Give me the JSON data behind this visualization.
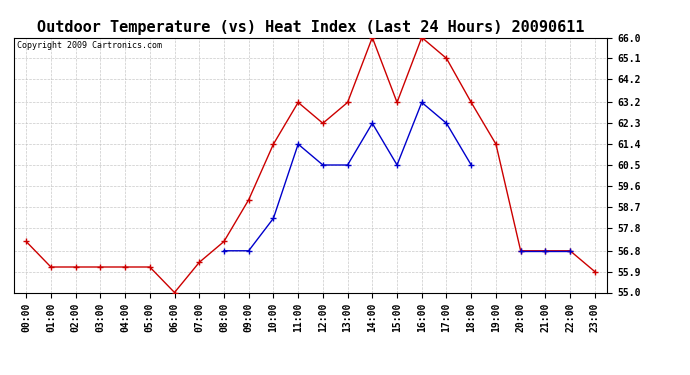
{
  "title": "Outdoor Temperature (vs) Heat Index (Last 24 Hours) 20090611",
  "copyright": "Copyright 2009 Cartronics.com",
  "hours": [
    "00:00",
    "01:00",
    "02:00",
    "03:00",
    "04:00",
    "05:00",
    "06:00",
    "07:00",
    "08:00",
    "09:00",
    "10:00",
    "11:00",
    "12:00",
    "13:00",
    "14:00",
    "15:00",
    "16:00",
    "17:00",
    "18:00",
    "19:00",
    "20:00",
    "21:00",
    "22:00",
    "23:00"
  ],
  "red_data": [
    57.2,
    56.1,
    56.1,
    56.1,
    56.1,
    56.1,
    55.0,
    56.3,
    57.2,
    59.0,
    61.4,
    63.2,
    62.3,
    63.2,
    66.0,
    63.2,
    66.0,
    65.1,
    63.2,
    61.4,
    56.8,
    56.8,
    56.8,
    55.9
  ],
  "blue_data": [
    null,
    null,
    null,
    null,
    null,
    null,
    null,
    null,
    56.8,
    56.8,
    58.2,
    61.4,
    60.5,
    60.5,
    62.3,
    60.5,
    63.2,
    62.3,
    60.5,
    null,
    56.8,
    56.8,
    56.8,
    null
  ],
  "ylim_min": 55.0,
  "ylim_max": 66.0,
  "yticks": [
    55.0,
    55.9,
    56.8,
    57.8,
    58.7,
    59.6,
    60.5,
    61.4,
    62.3,
    63.2,
    64.2,
    65.1,
    66.0
  ],
  "red_color": "#cc0000",
  "blue_color": "#0000cc",
  "bg_color": "#ffffff",
  "plot_bg": "#ffffff",
  "grid_color": "#bbbbbb",
  "title_fontsize": 11,
  "tick_fontsize": 7,
  "copyright_fontsize": 6
}
